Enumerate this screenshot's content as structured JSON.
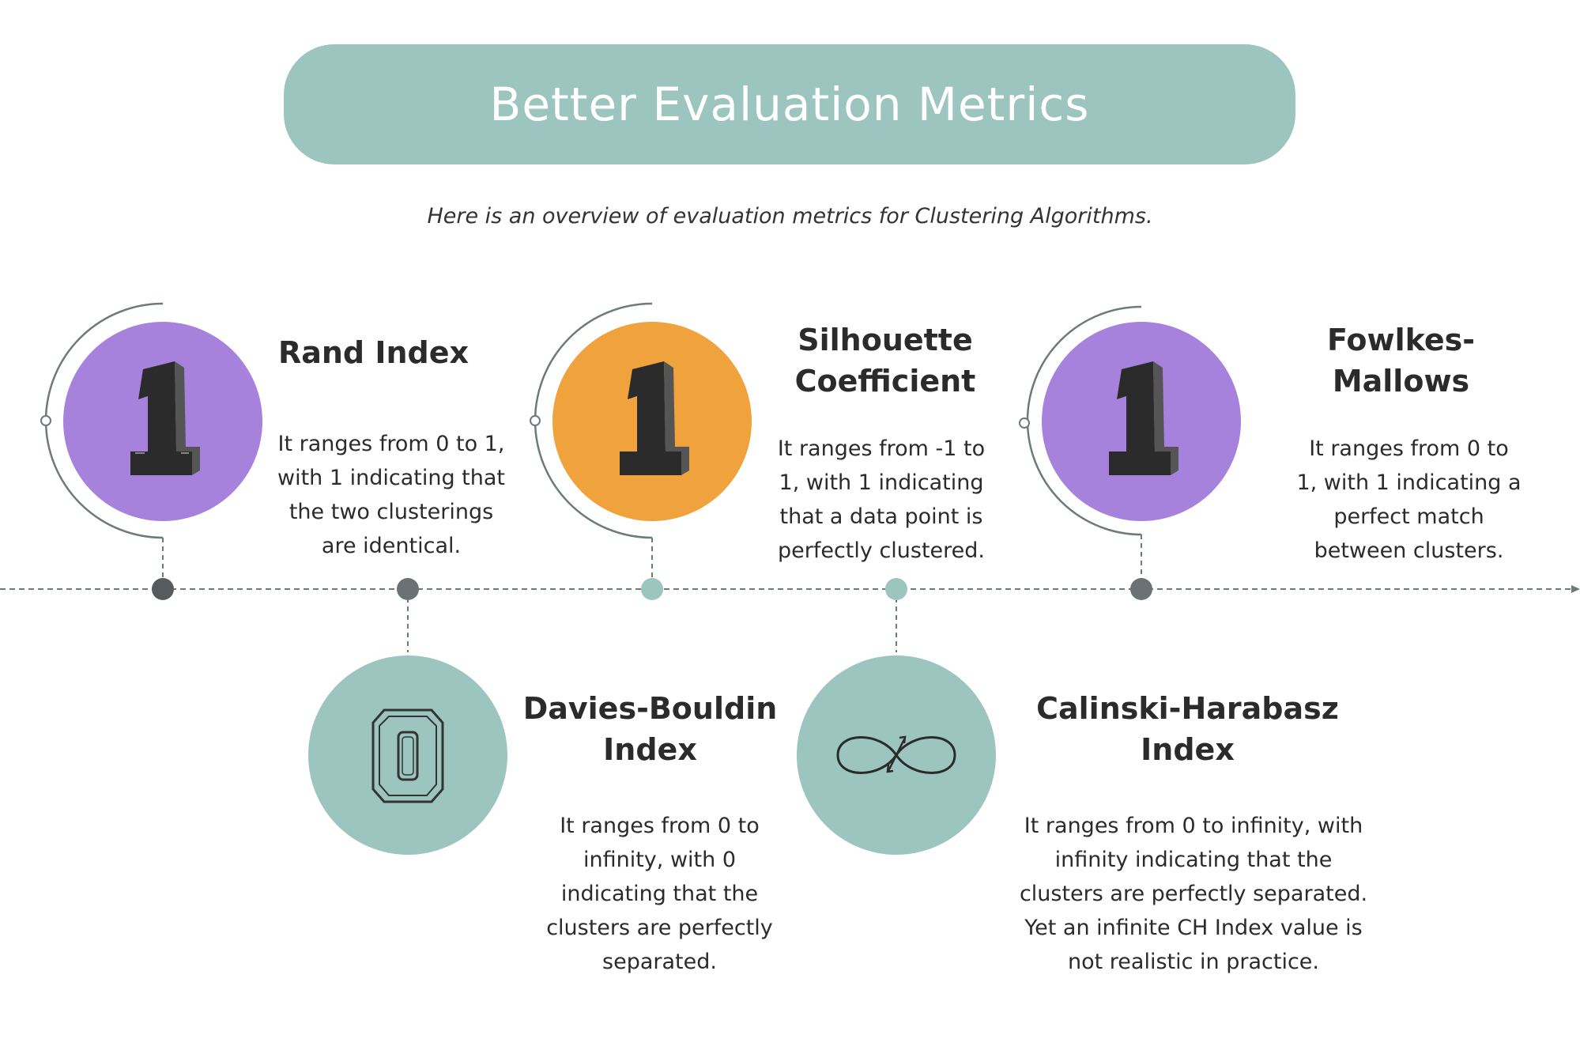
{
  "header": {
    "title": "Better Evaluation Metrics",
    "subtitle": "Here is an overview of evaluation metrics for Clustering Algorithms."
  },
  "colors": {
    "teal": "#9dc5c0",
    "purple": "#a782dd",
    "orange": "#f0a23c",
    "dark_dot": "#555b5e",
    "line": "#6e7a7a"
  },
  "metrics": [
    {
      "title_lines": [
        "Rand Index"
      ],
      "desc_lines": [
        "It ranges from 0 to 1,",
        "with 1 indicating that",
        "the two clusterings",
        "are identical."
      ],
      "symbol": "number-one-icon",
      "circle_color": "purple"
    },
    {
      "title_lines": [
        "Davies-Bouldin",
        "Index"
      ],
      "desc_lines": [
        "It ranges from 0 to",
        "infinity, with 0",
        "indicating that the",
        "clusters are perfectly",
        "separated."
      ],
      "symbol": "number-zero-icon",
      "circle_color": "teal"
    },
    {
      "title_lines": [
        "Silhouette",
        "Coefficient"
      ],
      "desc_lines": [
        "It ranges from -1 to",
        "1, with 1 indicating",
        "that a data point is",
        "perfectly clustered."
      ],
      "symbol": "number-one-icon",
      "circle_color": "orange"
    },
    {
      "title_lines": [
        "Calinski-Harabasz",
        "Index"
      ],
      "desc_lines": [
        "It ranges from 0 to infinity, with",
        "infinity indicating that the",
        "clusters are perfectly separated.",
        "Yet an infinite CH Index value is",
        "not realistic in practice."
      ],
      "symbol": "infinity-icon",
      "circle_color": "teal"
    },
    {
      "title_lines": [
        "Fowlkes-",
        "Mallows"
      ],
      "desc_lines": [
        "It ranges from 0 to",
        "1, with 1 indicating a",
        "perfect match",
        "between clusters."
      ],
      "symbol": "number-one-icon",
      "circle_color": "purple"
    }
  ]
}
